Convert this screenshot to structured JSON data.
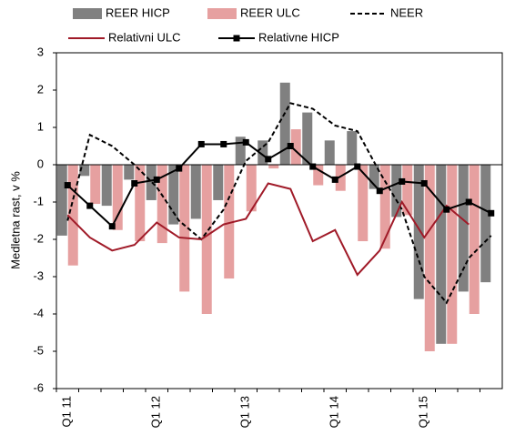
{
  "chart_data": {
    "type": "bar",
    "y_label": "Medletna rast, v %",
    "categories": [
      "Q1 11",
      null,
      null,
      null,
      "Q1 12",
      null,
      null,
      null,
      "Q1 13",
      null,
      null,
      null,
      "Q1 14",
      null,
      null,
      null,
      "Q1 15",
      null,
      null,
      null
    ],
    "ylim": [
      -6,
      3
    ],
    "yticks": [
      -6,
      -5,
      -4,
      -3,
      -2,
      -1,
      0,
      1,
      2,
      3
    ],
    "series": [
      {
        "name": "REER HICP",
        "type": "bar",
        "color": "#808080",
        "values": [
          -1.9,
          -0.3,
          -1.1,
          -0.4,
          -0.95,
          -1.6,
          -1.45,
          -0.95,
          0.75,
          0.65,
          2.2,
          1.4,
          0.65,
          0.9,
          -0.65,
          -1.4,
          -3.6,
          -4.8,
          -3.4,
          -3.15
        ]
      },
      {
        "name": "REER ULC",
        "type": "bar",
        "color": "#e6a0a0",
        "values": [
          -2.7,
          -1.05,
          -1.75,
          -2.05,
          -2.1,
          -3.4,
          -4.0,
          -3.05,
          -1.25,
          -0.1,
          0.95,
          -0.55,
          -0.7,
          -2.05,
          -2.25,
          -1.35,
          -5.0,
          -4.8,
          -4.0,
          null
        ]
      },
      {
        "name": "NEER",
        "type": "line",
        "color": "#000000",
        "dashed": true,
        "values": [
          -1.5,
          0.8,
          0.5,
          0.0,
          -0.6,
          -1.5,
          -2.0,
          -1.2,
          0.1,
          0.6,
          1.65,
          1.5,
          1.05,
          0.9,
          -0.2,
          -1.2,
          -3.0,
          -3.7,
          -2.5,
          -1.9
        ]
      },
      {
        "name": "Relativni ULC",
        "type": "line",
        "color": "#a01a28",
        "values": [
          -1.35,
          -1.95,
          -2.3,
          -2.15,
          -1.55,
          -1.95,
          -2.0,
          -1.6,
          -1.45,
          -0.5,
          -0.65,
          -2.05,
          -1.75,
          -2.95,
          -2.3,
          -1.0,
          -1.95,
          -1.1,
          -1.6,
          null
        ]
      },
      {
        "name": "Relativne HICP",
        "type": "line",
        "color": "#000000",
        "marker": "square",
        "values": [
          -0.55,
          -1.1,
          -1.65,
          -0.5,
          -0.4,
          -0.1,
          0.55,
          0.55,
          0.6,
          0.15,
          0.5,
          -0.05,
          -0.4,
          -0.05,
          -0.7,
          -0.45,
          -0.5,
          -1.2,
          -1.0,
          -1.3
        ]
      }
    ]
  }
}
